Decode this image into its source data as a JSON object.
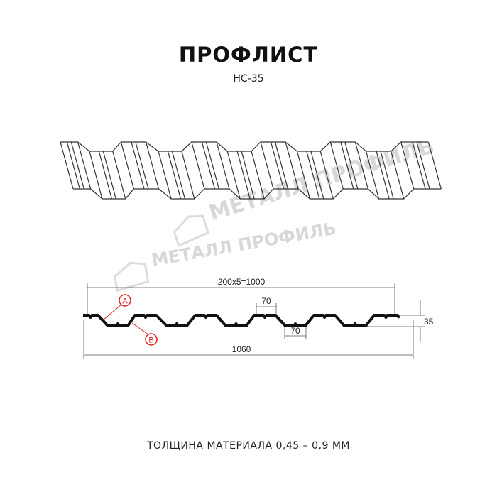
{
  "title": "ПРОФЛИСТ",
  "subtitle": "НС-35",
  "footer": "ТОЛЩИНА МАТЕРИАЛА 0,45 – 0,9 ММ",
  "watermark": "МЕТАЛЛ ПРОФИЛЬ",
  "dimensions": {
    "working_width": "200x5=1000",
    "total_width": "1060",
    "top_flat": "70",
    "bottom_flat": "70",
    "height": "35"
  },
  "markers": {
    "a": "A",
    "b": "B"
  },
  "colors": {
    "profile": "#111111",
    "marker": "#e02020",
    "watermark": "#d8d8d8"
  }
}
